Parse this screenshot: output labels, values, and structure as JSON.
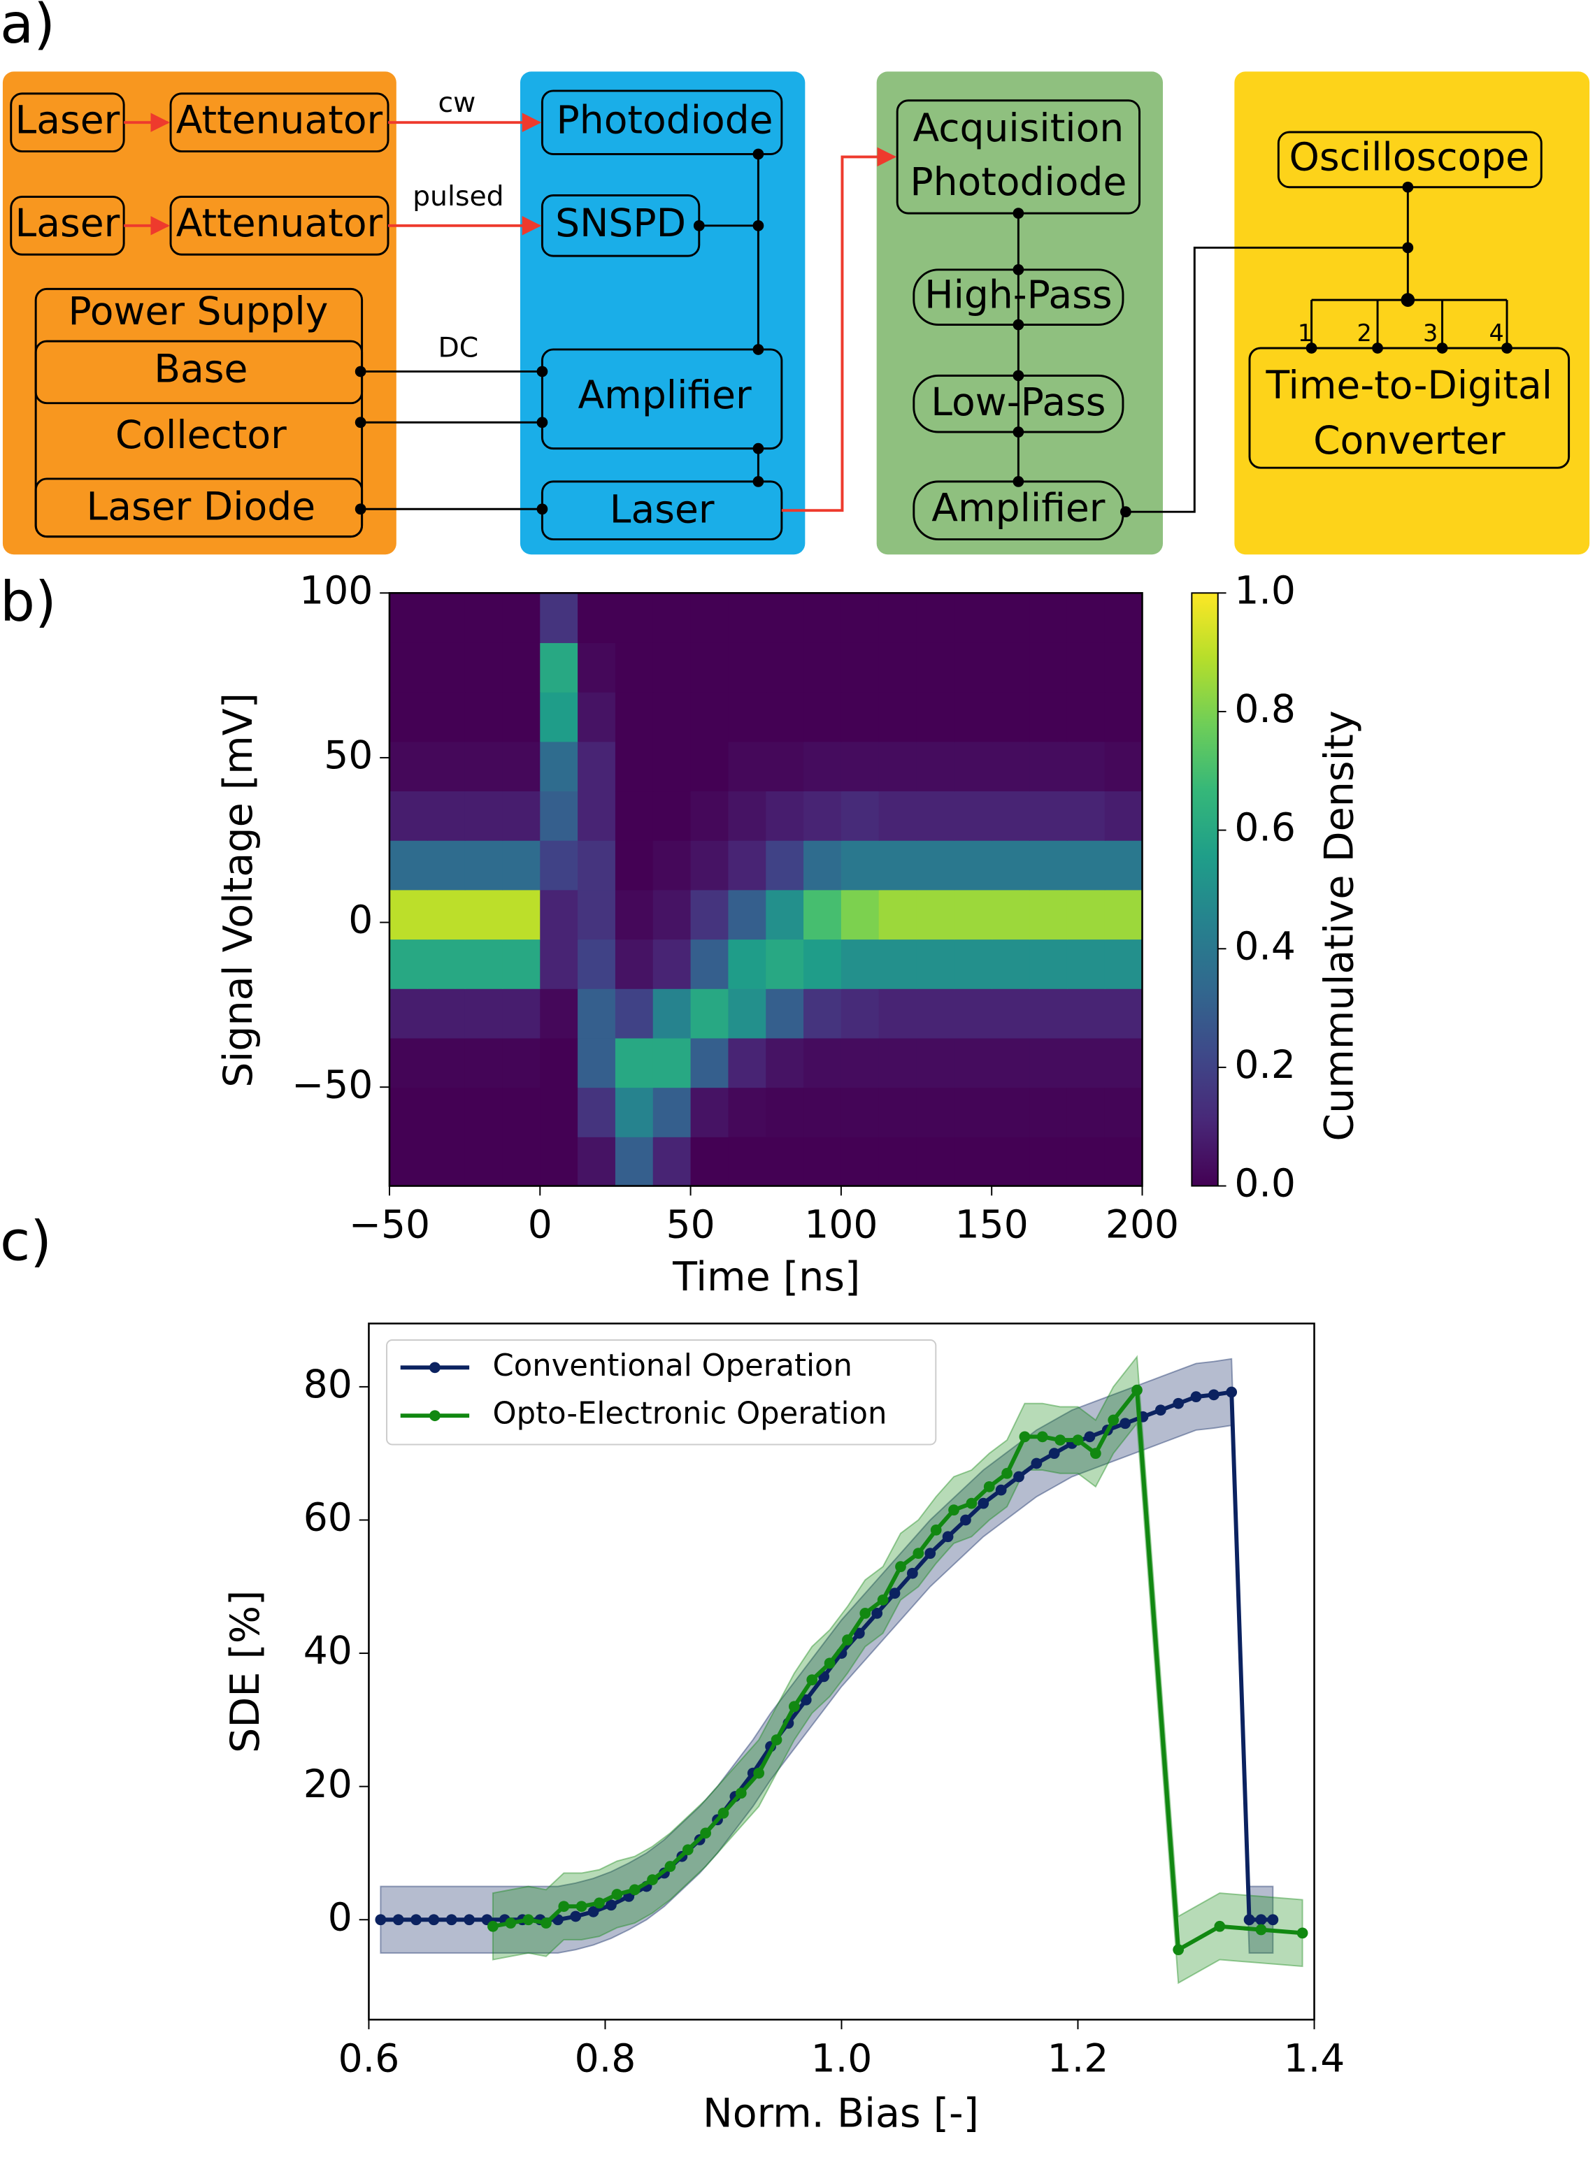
{
  "panel_labels": [
    "a)",
    "b)",
    "c)"
  ],
  "diagram": {
    "source": {
      "laser_1": "Laser",
      "attenuator_1": "Attenuator",
      "laser_2": "Laser",
      "attenuator_2": "Attenuator",
      "power_supply": "Power Supply",
      "base": "Base",
      "collector": "Collector",
      "laser_diode": "Laser Diode"
    },
    "edges": {
      "cw": "cw",
      "pulsed": "pulsed",
      "dc": "DC"
    },
    "detector": {
      "photodiode": "Photodiode",
      "snspd": "SNSPD",
      "amplifier": "Amplifier",
      "laser": "Laser"
    },
    "acquisition": {
      "photodiode": [
        "Acquisition",
        "Photodiode"
      ],
      "high_pass": "High-Pass",
      "low_pass": "Low-Pass",
      "amplifier": "Amplifier"
    },
    "readout": {
      "oscilloscope": "Oscilloscope",
      "channels": [
        "1",
        "2",
        "3",
        "4"
      ],
      "tdc": [
        "Time-to-Digital",
        "Converter"
      ]
    }
  },
  "chart_data": [
    {
      "type": "heatmap",
      "xlabel": "Time [ns]",
      "ylabel": "Signal Voltage [mV]",
      "colorbar_label": "Cummulative Density",
      "xlim": [
        -50,
        200
      ],
      "ylim": [
        -80,
        100
      ],
      "xticks": [
        {
          "value": -50,
          "label": "−50"
        },
        0,
        50,
        100,
        150,
        200
      ],
      "yticks": [
        {
          "value": -50,
          "label": "−50"
        },
        0,
        50,
        100
      ],
      "clim": [
        0,
        1
      ],
      "cticks": [
        {
          "value": 0,
          "label": "0.0"
        },
        0.2,
        0.4,
        0.6,
        0.8,
        {
          "value": 1,
          "label": "1.0"
        }
      ],
      "colormap": [
        "#440154",
        "#482878",
        "#3e4989",
        "#31688e",
        "#26828e",
        "#1f9e89",
        "#35b779",
        "#6ece58",
        "#b5de2b",
        "#fde725"
      ],
      "x_edges": [
        -50,
        -37.5,
        -25,
        -12.5,
        0,
        12.5,
        25,
        37.5,
        50,
        62.5,
        75,
        87.5,
        100,
        112.5,
        125,
        137.5,
        150,
        162.5,
        175,
        187.5,
        200
      ],
      "y_edges": [
        -80,
        -65,
        -50,
        -35,
        -20,
        -5,
        10,
        25,
        40,
        55,
        70,
        85,
        100
      ],
      "z": [
        [
          0,
          0,
          0,
          0,
          0,
          0.05,
          0.3,
          0.1,
          0,
          0,
          0,
          0,
          0,
          0,
          0,
          0,
          0,
          0,
          0,
          0
        ],
        [
          0,
          0,
          0,
          0,
          0,
          0.15,
          0.45,
          0.3,
          0.05,
          0.02,
          0.01,
          0.01,
          0.01,
          0.01,
          0.01,
          0.01,
          0.01,
          0.01,
          0.01,
          0.01
        ],
        [
          0.01,
          0.01,
          0.01,
          0.01,
          0,
          0.3,
          0.6,
          0.6,
          0.3,
          0.1,
          0.05,
          0.03,
          0.03,
          0.03,
          0.03,
          0.03,
          0.03,
          0.03,
          0.03,
          0.03
        ],
        [
          0.08,
          0.08,
          0.08,
          0.08,
          0.02,
          0.3,
          0.2,
          0.45,
          0.6,
          0.5,
          0.3,
          0.15,
          0.12,
          0.1,
          0.1,
          0.1,
          0.1,
          0.1,
          0.1,
          0.1
        ],
        [
          0.6,
          0.6,
          0.6,
          0.6,
          0.1,
          0.2,
          0.05,
          0.1,
          0.3,
          0.55,
          0.6,
          0.55,
          0.5,
          0.5,
          0.5,
          0.5,
          0.5,
          0.5,
          0.5,
          0.5
        ],
        [
          0.9,
          0.9,
          0.9,
          0.9,
          0.1,
          0.15,
          0.02,
          0.05,
          0.15,
          0.3,
          0.5,
          0.7,
          0.8,
          0.85,
          0.85,
          0.85,
          0.85,
          0.85,
          0.85,
          0.85
        ],
        [
          0.35,
          0.35,
          0.35,
          0.35,
          0.2,
          0.15,
          0,
          0.02,
          0.05,
          0.1,
          0.2,
          0.35,
          0.4,
          0.4,
          0.4,
          0.4,
          0.4,
          0.4,
          0.4,
          0.4
        ],
        [
          0.08,
          0.08,
          0.08,
          0.08,
          0.3,
          0.1,
          0,
          0,
          0.02,
          0.05,
          0.08,
          0.1,
          0.12,
          0.1,
          0.1,
          0.1,
          0.1,
          0.1,
          0.1,
          0.08
        ],
        [
          0.02,
          0.02,
          0.02,
          0.02,
          0.35,
          0.1,
          0,
          0,
          0,
          0.02,
          0.02,
          0.03,
          0.03,
          0.03,
          0.03,
          0.03,
          0.03,
          0.03,
          0.03,
          0.02
        ],
        [
          0,
          0,
          0,
          0,
          0.55,
          0.05,
          0,
          0,
          0,
          0,
          0,
          0,
          0,
          0,
          0,
          0,
          0,
          0,
          0,
          0
        ],
        [
          0,
          0,
          0,
          0,
          0.6,
          0.02,
          0,
          0,
          0,
          0,
          0,
          0,
          0,
          0,
          0,
          0,
          0,
          0,
          0,
          0
        ],
        [
          0,
          0,
          0,
          0,
          0.15,
          0,
          0,
          0,
          0,
          0,
          0,
          0,
          0,
          0,
          0,
          0,
          0,
          0,
          0,
          0
        ]
      ]
    },
    {
      "type": "line",
      "xlabel": "Norm. Bias [-]",
      "ylabel": "SDE [%]",
      "xlim": [
        0.6,
        1.4
      ],
      "ylim": [
        -15,
        89.5
      ],
      "xticks": [
        0.6,
        0.8,
        {
          "value": 1,
          "label": "1.0"
        },
        1.2,
        1.4
      ],
      "yticks": [
        0,
        20,
        40,
        60,
        80
      ],
      "legend": "upper left",
      "series": [
        {
          "name": "Conventional Operation",
          "color": "#0b2260",
          "error": 5,
          "x": [
            0.61,
            0.625,
            0.64,
            0.655,
            0.67,
            0.685,
            0.7,
            0.715,
            0.73,
            0.745,
            0.76,
            0.775,
            0.79,
            0.805,
            0.82,
            0.835,
            0.85,
            0.865,
            0.88,
            0.895,
            0.91,
            0.925,
            0.94,
            0.955,
            0.97,
            0.985,
            1.0,
            1.015,
            1.03,
            1.045,
            1.06,
            1.075,
            1.09,
            1.105,
            1.12,
            1.135,
            1.15,
            1.165,
            1.18,
            1.195,
            1.21,
            1.225,
            1.24,
            1.255,
            1.27,
            1.285,
            1.3,
            1.315,
            1.33,
            1.345,
            1.355,
            1.365
          ],
          "values": [
            0,
            0,
            0,
            0,
            0,
            0,
            0,
            0,
            0,
            0,
            0,
            0.5,
            1.2,
            2.2,
            3.5,
            5,
            7,
            9.5,
            12,
            15,
            18.5,
            22,
            26,
            29.5,
            33,
            36.5,
            40,
            43,
            46,
            49,
            52,
            55,
            57.5,
            60,
            62.5,
            64.5,
            66.5,
            68.5,
            70,
            71.5,
            72.5,
            73.5,
            74.5,
            75.5,
            76.5,
            77.5,
            78.5,
            78.8,
            79.2,
            0,
            0,
            0
          ]
        },
        {
          "name": "Opto-Electronic Operation",
          "color": "#118811",
          "error": 5,
          "x": [
            0.705,
            0.72,
            0.735,
            0.75,
            0.765,
            0.78,
            0.795,
            0.81,
            0.825,
            0.84,
            0.855,
            0.87,
            0.885,
            0.9,
            0.915,
            0.93,
            0.945,
            0.96,
            0.975,
            0.99,
            1.005,
            1.02,
            1.035,
            1.05,
            1.065,
            1.08,
            1.095,
            1.11,
            1.125,
            1.14,
            1.155,
            1.17,
            1.185,
            1.2,
            1.215,
            1.23,
            1.25,
            1.285,
            1.32,
            1.355,
            1.39
          ],
          "values": [
            -1,
            -0.5,
            0,
            -0.5,
            2,
            2,
            2.5,
            3.8,
            4.5,
            6,
            8,
            10.5,
            13,
            16,
            19,
            22,
            27,
            32,
            36,
            38.5,
            42,
            46,
            48,
            53,
            55,
            58.5,
            61.5,
            62.5,
            65,
            67,
            72.5,
            72.5,
            72,
            72,
            70,
            75,
            79.5,
            -4.5,
            -1,
            -1.5,
            -2
          ]
        }
      ]
    }
  ]
}
